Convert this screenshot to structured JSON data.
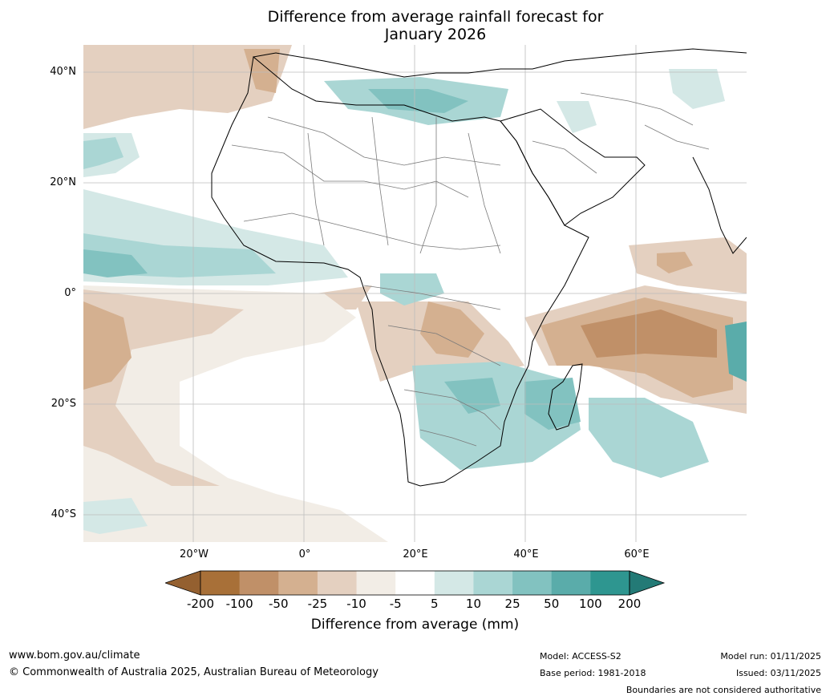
{
  "title_line1": "Difference from average rainfall forecast for",
  "title_line2": "January 2026",
  "lat_labels": [
    "40°N",
    "20°N",
    "0°",
    "20°S",
    "40°S"
  ],
  "lon_labels": [
    "20°W",
    "0°",
    "20°E",
    "40°E",
    "60°E"
  ],
  "colorbar": {
    "ticks": [
      "-200",
      "-100",
      "-50",
      "-25",
      "-10",
      "-5",
      "5",
      "10",
      "25",
      "50",
      "100",
      "200"
    ],
    "colors": [
      "#a87038",
      "#c09068",
      "#d4b090",
      "#e4d0c0",
      "#f2ede6",
      "#ffffff",
      "#d4e8e6",
      "#aad6d4",
      "#82c2c0",
      "#5aacaa",
      "#2e9690"
    ],
    "low_color": "#946030",
    "high_color": "#237a76",
    "label": "Difference from average (mm)"
  },
  "footer": {
    "url": "www.bom.gov.au/climate",
    "copyright": "© Commonwealth of Australia 2025, Australian Bureau of Meteorology",
    "model": "Model: ACCESS-S2",
    "base_period": "Base period: 1981-2018",
    "model_run": "Model run: 01/11/2025",
    "issued": "Issued: 03/11/2025",
    "disclaimer": "Boundaries are not considered authoritative"
  }
}
